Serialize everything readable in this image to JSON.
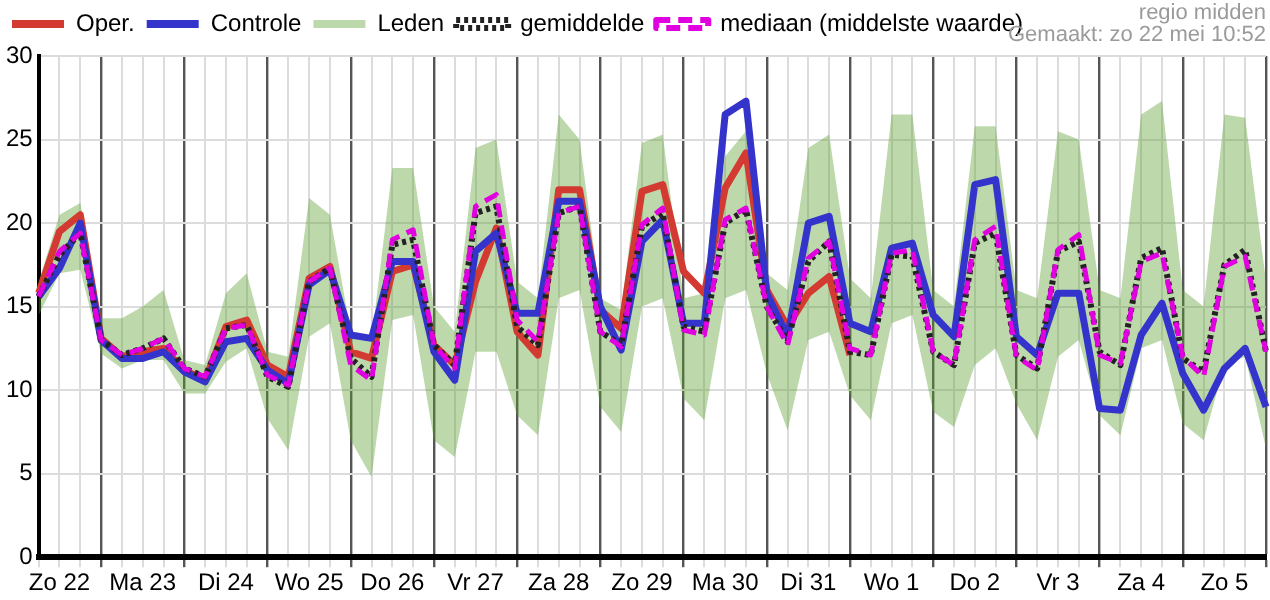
{
  "chart_data": {
    "type": "line",
    "annotations": [
      "regio midden",
      "Gemaakt: zo 22 mei 10:52"
    ],
    "categories": [
      null,
      "Zo 22",
      null,
      null,
      null,
      "Ma 23",
      null,
      null,
      null,
      "Di 24",
      null,
      null,
      null,
      "Wo 25",
      null,
      null,
      null,
      "Do 26",
      null,
      null,
      null,
      "Vr 27",
      null,
      null,
      null,
      "Za 28",
      null,
      null,
      null,
      "Zo 29",
      null,
      null,
      null,
      "Ma 30",
      null,
      null,
      null,
      "Di 31",
      null,
      null,
      null,
      "Wo 1",
      null,
      null,
      null,
      "Do 2",
      null,
      null,
      null,
      "Vr 3",
      null,
      null,
      null,
      "Za 4",
      null,
      null,
      null,
      "Zo 5",
      null,
      null
    ],
    "ylim": [
      0,
      30
    ],
    "yticks": [
      0,
      5,
      10,
      15,
      20,
      25,
      30
    ],
    "grid": true,
    "legend": "top left",
    "marker": "none",
    "series": [
      {
        "name": "Oper.",
        "color": "#d23a32",
        "line_style": "solid",
        "values": [
          15.8,
          19.5,
          20.5,
          13.1,
          12.0,
          12.3,
          12.5,
          11.2,
          10.6,
          13.8,
          14.2,
          11.5,
          10.8,
          16.7,
          17.4,
          12.3,
          11.9,
          17.1,
          17.5,
          12.7,
          11.5,
          16.5,
          19.7,
          13.5,
          12.1,
          22.0,
          22.0,
          14.8,
          13.7,
          21.9,
          22.3,
          17.1,
          15.8,
          22.1,
          24.2,
          16.0,
          13.8,
          15.8,
          16.8,
          12.1,
          null,
          null,
          null,
          null,
          null,
          null,
          null,
          null,
          null,
          null,
          null,
          null,
          null,
          null,
          null,
          null,
          null,
          null,
          null,
          null
        ]
      },
      {
        "name": "Controle",
        "color": "#3434cc",
        "line_style": "solid",
        "values": [
          15.6,
          17.3,
          20.0,
          13.0,
          11.9,
          11.9,
          12.3,
          11.1,
          10.5,
          12.9,
          13.1,
          11.2,
          10.4,
          16.3,
          17.2,
          13.3,
          13.1,
          17.7,
          17.7,
          12.3,
          10.6,
          18.3,
          19.4,
          14.6,
          14.6,
          21.3,
          21.3,
          15.0,
          12.4,
          18.9,
          20.2,
          14.0,
          14.0,
          26.5,
          27.3,
          15.8,
          13.2,
          20.0,
          20.4,
          14.0,
          13.5,
          18.5,
          18.8,
          14.5,
          13.2,
          22.3,
          22.6,
          13.2,
          12.1,
          15.8,
          15.8,
          8.9,
          8.8,
          13.3,
          15.2,
          11.0,
          8.8,
          11.3,
          12.5,
          9.0
        ]
      },
      {
        "name": "Leden",
        "color": "#5aa02c",
        "values": [
          null,
          null,
          null,
          null,
          null,
          null,
          null,
          null,
          null,
          null,
          null,
          null,
          null,
          null,
          null,
          null,
          null,
          null,
          null,
          null,
          null,
          null,
          null,
          null,
          null,
          null,
          null,
          null,
          null,
          null,
          null,
          null,
          null,
          null,
          null,
          null,
          null,
          null,
          null,
          null,
          null,
          null,
          null,
          null,
          null,
          null,
          null,
          null,
          null,
          null,
          null,
          null,
          null,
          null,
          null,
          null,
          null,
          null,
          null,
          null
        ],
        "lower": [
          14.5,
          17.0,
          17.2,
          12.2,
          11.3,
          11.8,
          11.8,
          9.8,
          9.8,
          11.7,
          12.5,
          8.3,
          6.4,
          13.2,
          14.0,
          7.0,
          4.8,
          14.2,
          14.5,
          7.0,
          6.0,
          12.3,
          12.3,
          8.5,
          7.3,
          15.5,
          16.0,
          9.0,
          7.5,
          15.0,
          15.5,
          9.5,
          8.2,
          15.5,
          16.0,
          11.0,
          7.6,
          13.0,
          13.5,
          9.7,
          8.2,
          14.0,
          14.5,
          8.7,
          7.8,
          11.5,
          12.5,
          9.2,
          7.0,
          12.0,
          13.0,
          8.5,
          7.3,
          12.5,
          13.0,
          8.0,
          7.0,
          11.5,
          12.0,
          6.5
        ],
        "upper": [
          16.5,
          20.5,
          21.2,
          14.3,
          14.3,
          15.0,
          16.0,
          11.8,
          11.5,
          15.8,
          17.0,
          12.3,
          12.0,
          21.5,
          20.5,
          13.5,
          13.0,
          23.3,
          23.3,
          15.0,
          13.5,
          24.5,
          25.0,
          16.5,
          15.5,
          26.5,
          25.0,
          15.5,
          14.8,
          24.8,
          25.3,
          15.5,
          15.8,
          24.0,
          25.5,
          17.0,
          16.0,
          24.5,
          25.3,
          16.7,
          15.5,
          26.5,
          26.5,
          16.0,
          15.0,
          25.8,
          25.8,
          16.0,
          15.5,
          25.5,
          25.0,
          16.0,
          15.5,
          26.5,
          27.3,
          16.0,
          15.0,
          26.5,
          26.3,
          16.5
        ]
      },
      {
        "name": "gemiddelde",
        "color": "#222222",
        "line_style": "dotted",
        "values": [
          15.6,
          18.1,
          19.4,
          13.0,
          12.1,
          12.5,
          13.1,
          11.3,
          10.8,
          13.7,
          13.9,
          10.8,
          10.2,
          16.5,
          17.3,
          11.9,
          10.8,
          18.7,
          19.0,
          12.7,
          11.5,
          20.6,
          21.0,
          13.8,
          12.7,
          20.6,
          21.0,
          13.5,
          12.7,
          19.8,
          20.6,
          13.8,
          13.5,
          20.0,
          20.8,
          15.0,
          12.9,
          17.7,
          18.9,
          12.3,
          12.1,
          18.1,
          18.0,
          12.3,
          11.5,
          18.8,
          19.4,
          12.1,
          11.3,
          18.3,
          18.9,
          12.3,
          11.5,
          17.9,
          18.5,
          11.9,
          11.1,
          17.5,
          18.4,
          12.3
        ]
      },
      {
        "name": "mediaan (middelste waarde)",
        "color": "#e000e0",
        "line_style": "dashed",
        "values": [
          15.6,
          18.3,
          19.4,
          13.0,
          12.1,
          12.5,
          13.1,
          11.3,
          10.8,
          13.7,
          13.9,
          10.9,
          10.3,
          16.5,
          17.3,
          11.5,
          10.6,
          19.0,
          19.6,
          12.7,
          11.3,
          21.0,
          21.7,
          14.2,
          12.9,
          20.6,
          21.0,
          13.5,
          12.6,
          19.9,
          20.9,
          13.6,
          13.3,
          20.2,
          20.9,
          15.0,
          12.7,
          17.9,
          18.9,
          12.5,
          12.1,
          18.2,
          18.4,
          12.3,
          11.5,
          19.0,
          19.8,
          12.0,
          11.2,
          18.4,
          19.3,
          12.1,
          11.6,
          17.7,
          18.2,
          12.0,
          10.8,
          17.4,
          18.0,
          12.3
        ]
      }
    ]
  }
}
